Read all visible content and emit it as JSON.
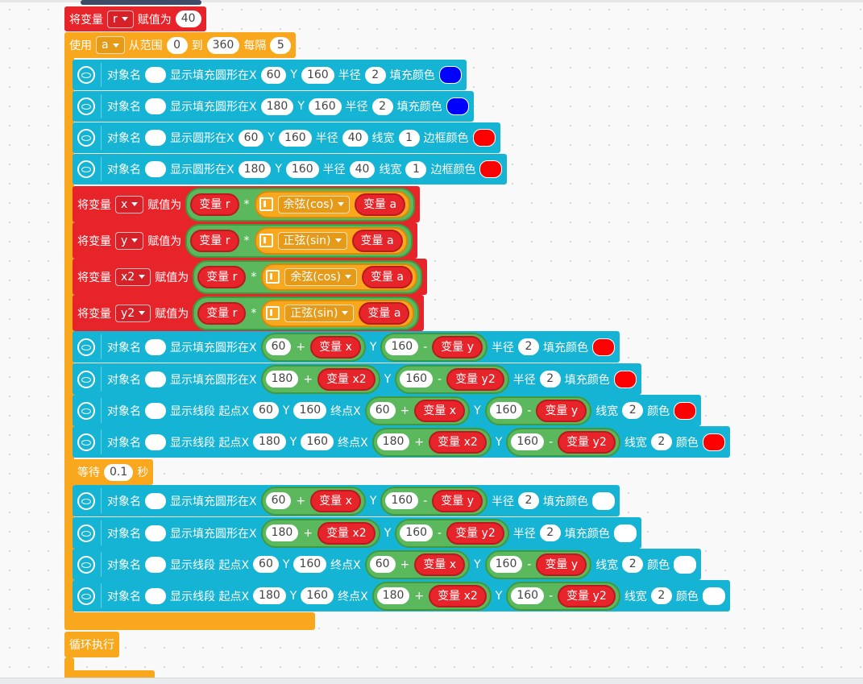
{
  "blocks": [
    {
      "color": "#e8242b",
      "parts": [
        {
          "t": "将变量"
        },
        {
          "d": "r"
        },
        {
          "t": "赋值为"
        },
        {
          "n": "40"
        }
      ]
    },
    {
      "color": "#f9a81d",
      "parts": [
        {
          "t": "使用"
        },
        {
          "d": "a"
        },
        {
          "t": "从范围"
        },
        {
          "n": "0"
        },
        {
          "t": "到"
        },
        {
          "n": "360"
        },
        {
          "t": "每隔"
        },
        {
          "n": "5"
        }
      ]
    },
    {
      "color": "#16b4d4",
      "icon": true,
      "parts": [
        {
          "t": "对象名"
        },
        {
          "ov": "#ffffff"
        },
        {
          "t": "显示填充圆形在X"
        },
        {
          "n": "60"
        },
        {
          "t": "Y"
        },
        {
          "n": "160"
        },
        {
          "t": "半径"
        },
        {
          "n": "2"
        },
        {
          "t": "填充颜色"
        },
        {
          "sw": "#0000ff"
        }
      ]
    },
    {
      "color": "#16b4d4",
      "icon": true,
      "parts": [
        {
          "t": "对象名"
        },
        {
          "ov": "#ffffff"
        },
        {
          "t": "显示填充圆形在X"
        },
        {
          "n": "180"
        },
        {
          "t": "Y"
        },
        {
          "n": "160"
        },
        {
          "t": "半径"
        },
        {
          "n": "2"
        },
        {
          "t": "填充颜色"
        },
        {
          "sw": "#0000ff"
        }
      ]
    },
    {
      "color": "#16b4d4",
      "icon": true,
      "parts": [
        {
          "t": "对象名"
        },
        {
          "ov": "#ffffff"
        },
        {
          "t": "显示圆形在X"
        },
        {
          "n": "60"
        },
        {
          "t": "Y"
        },
        {
          "n": "160"
        },
        {
          "t": "半径"
        },
        {
          "n": "40"
        },
        {
          "t": "线宽"
        },
        {
          "n": "1"
        },
        {
          "t": "边框颜色"
        },
        {
          "sw": "#ff0000"
        }
      ]
    },
    {
      "color": "#16b4d4",
      "icon": true,
      "parts": [
        {
          "t": "对象名"
        },
        {
          "ov": "#ffffff"
        },
        {
          "t": "显示圆形在X"
        },
        {
          "n": "180"
        },
        {
          "t": "Y"
        },
        {
          "n": "160"
        },
        {
          "t": "半径"
        },
        {
          "n": "40"
        },
        {
          "t": "线宽"
        },
        {
          "n": "1"
        },
        {
          "t": "边框颜色"
        },
        {
          "sw": "#ff0000"
        }
      ]
    },
    {
      "color": "#e8242b",
      "parts": [
        {
          "t": "将变量"
        },
        {
          "d": "x"
        },
        {
          "t": "赋值为"
        },
        {
          "e": [
            {
              "v": "变量 r"
            },
            {
              "op": "*"
            },
            {
              "f": [
                {
                  "d": "余弦(cos)"
                },
                {
                  "v": "变量 a"
                }
              ]
            }
          ]
        }
      ]
    },
    {
      "color": "#e8242b",
      "parts": [
        {
          "t": "将变量"
        },
        {
          "d": "y"
        },
        {
          "t": "赋值为"
        },
        {
          "e": [
            {
              "v": "变量 r"
            },
            {
              "op": "*"
            },
            {
              "f": [
                {
                  "d": "正弦(sin)"
                },
                {
                  "v": "变量 a"
                }
              ]
            }
          ]
        }
      ]
    },
    {
      "color": "#e8242b",
      "parts": [
        {
          "t": "将变量"
        },
        {
          "d": "x2"
        },
        {
          "t": "赋值为"
        },
        {
          "e": [
            {
              "v": "变量 r"
            },
            {
              "op": "*"
            },
            {
              "f": [
                {
                  "d": "余弦(cos)"
                },
                {
                  "v": "变量 a"
                }
              ]
            }
          ]
        }
      ]
    },
    {
      "color": "#e8242b",
      "parts": [
        {
          "t": "将变量"
        },
        {
          "d": "y2"
        },
        {
          "t": "赋值为"
        },
        {
          "e": [
            {
              "v": "变量 r"
            },
            {
              "op": "*"
            },
            {
              "f": [
                {
                  "d": "正弦(sin)"
                },
                {
                  "v": "变量 a"
                }
              ]
            }
          ]
        }
      ]
    },
    {
      "color": "#16b4d4",
      "icon": true,
      "parts": [
        {
          "t": "对象名"
        },
        {
          "ov": "#ffffff"
        },
        {
          "t": "显示填充圆形在X"
        },
        {
          "e": [
            {
              "n": "60"
            },
            {
              "op": "+"
            },
            {
              "v": "变量 x"
            }
          ]
        },
        {
          "t": "Y"
        },
        {
          "e": [
            {
              "n": "160"
            },
            {
              "op": "-"
            },
            {
              "v": "变量 y"
            }
          ]
        },
        {
          "t": "半径"
        },
        {
          "n": "2"
        },
        {
          "t": "填充颜色"
        },
        {
          "sw": "#ff0000"
        }
      ]
    },
    {
      "color": "#16b4d4",
      "icon": true,
      "parts": [
        {
          "t": "对象名"
        },
        {
          "ov": "#ffffff"
        },
        {
          "t": "显示填充圆形在X"
        },
        {
          "e": [
            {
              "n": "180"
            },
            {
              "op": "+"
            },
            {
              "v": "变量 x2"
            }
          ]
        },
        {
          "t": "Y"
        },
        {
          "e": [
            {
              "n": "160"
            },
            {
              "op": "-"
            },
            {
              "v": "变量 y2"
            }
          ]
        },
        {
          "t": "半径"
        },
        {
          "n": "2"
        },
        {
          "t": "填充颜色"
        },
        {
          "sw": "#ff0000"
        }
      ]
    },
    {
      "color": "#16b4d4",
      "icon": true,
      "parts": [
        {
          "t": "对象名"
        },
        {
          "ov": "#ffffff"
        },
        {
          "t": "显示线段 起点X"
        },
        {
          "n": "60"
        },
        {
          "t": "Y"
        },
        {
          "n": "160"
        },
        {
          "t": "终点X"
        },
        {
          "e": [
            {
              "n": "60"
            },
            {
              "op": "+"
            },
            {
              "v": "变量 x"
            }
          ]
        },
        {
          "t": "Y"
        },
        {
          "e": [
            {
              "n": "160"
            },
            {
              "op": "-"
            },
            {
              "v": "变量 y"
            }
          ]
        },
        {
          "t": "线宽"
        },
        {
          "n": "2"
        },
        {
          "t": "颜色"
        },
        {
          "sw": "#ff0000"
        }
      ]
    },
    {
      "color": "#16b4d4",
      "icon": true,
      "parts": [
        {
          "t": "对象名"
        },
        {
          "ov": "#ffffff"
        },
        {
          "t": "显示线段 起点X"
        },
        {
          "n": "180"
        },
        {
          "t": "Y"
        },
        {
          "n": "160"
        },
        {
          "t": "终点X"
        },
        {
          "e": [
            {
              "n": "180"
            },
            {
              "op": "+"
            },
            {
              "v": "变量 x2"
            }
          ]
        },
        {
          "t": "Y"
        },
        {
          "e": [
            {
              "n": "160"
            },
            {
              "op": "-"
            },
            {
              "v": "变量 y2"
            }
          ]
        },
        {
          "t": "线宽"
        },
        {
          "n": "2"
        },
        {
          "t": "颜色"
        },
        {
          "sw": "#ff0000"
        }
      ]
    },
    {
      "color": "#f9a81d",
      "parts": [
        {
          "t": "等待"
        },
        {
          "n": "0.1"
        },
        {
          "t": "秒"
        }
      ]
    },
    {
      "color": "#16b4d4",
      "icon": true,
      "parts": [
        {
          "t": "对象名"
        },
        {
          "ov": "#ffffff"
        },
        {
          "t": "显示填充圆形在X"
        },
        {
          "e": [
            {
              "n": "60"
            },
            {
              "op": "+"
            },
            {
              "v": "变量 x"
            }
          ]
        },
        {
          "t": "Y"
        },
        {
          "e": [
            {
              "n": "160"
            },
            {
              "op": "-"
            },
            {
              "v": "变量 y"
            }
          ]
        },
        {
          "t": "半径"
        },
        {
          "n": "2"
        },
        {
          "t": "填充颜色"
        },
        {
          "sw": "#ffffff"
        }
      ]
    },
    {
      "color": "#16b4d4",
      "icon": true,
      "parts": [
        {
          "t": "对象名"
        },
        {
          "ov": "#ffffff"
        },
        {
          "t": "显示填充圆形在X"
        },
        {
          "e": [
            {
              "n": "180"
            },
            {
              "op": "+"
            },
            {
              "v": "变量 x2"
            }
          ]
        },
        {
          "t": "Y"
        },
        {
          "e": [
            {
              "n": "160"
            },
            {
              "op": "-"
            },
            {
              "v": "变量 y2"
            }
          ]
        },
        {
          "t": "半径"
        },
        {
          "n": "2"
        },
        {
          "t": "填充颜色"
        },
        {
          "sw": "#ffffff"
        }
      ]
    },
    {
      "color": "#16b4d4",
      "icon": true,
      "parts": [
        {
          "t": "对象名"
        },
        {
          "ov": "#ffffff"
        },
        {
          "t": "显示线段 起点X"
        },
        {
          "n": "60"
        },
        {
          "t": "Y"
        },
        {
          "n": "160"
        },
        {
          "t": "终点X"
        },
        {
          "e": [
            {
              "n": "60"
            },
            {
              "op": "+"
            },
            {
              "v": "变量 x"
            }
          ]
        },
        {
          "t": "Y"
        },
        {
          "e": [
            {
              "n": "160"
            },
            {
              "op": "-"
            },
            {
              "v": "变量 y"
            }
          ]
        },
        {
          "t": "线宽"
        },
        {
          "n": "2"
        },
        {
          "t": "颜色"
        },
        {
          "sw": "#ffffff"
        }
      ]
    },
    {
      "color": "#16b4d4",
      "icon": true,
      "parts": [
        {
          "t": "对象名"
        },
        {
          "ov": "#ffffff"
        },
        {
          "t": "显示线段 起点X"
        },
        {
          "n": "180"
        },
        {
          "t": "Y"
        },
        {
          "n": "160"
        },
        {
          "t": "终点X"
        },
        {
          "e": [
            {
              "n": "180"
            },
            {
              "op": "+"
            },
            {
              "v": "变量 x2"
            }
          ]
        },
        {
          "t": "Y"
        },
        {
          "e": [
            {
              "n": "160"
            },
            {
              "op": "-"
            },
            {
              "v": "变量 y2"
            }
          ]
        },
        {
          "t": "线宽"
        },
        {
          "n": "2"
        },
        {
          "t": "颜色"
        },
        {
          "sw": "#ffffff"
        }
      ]
    },
    {
      "color": "#f9a81d",
      "parts": [
        {
          "t": "循环执行"
        }
      ]
    }
  ]
}
